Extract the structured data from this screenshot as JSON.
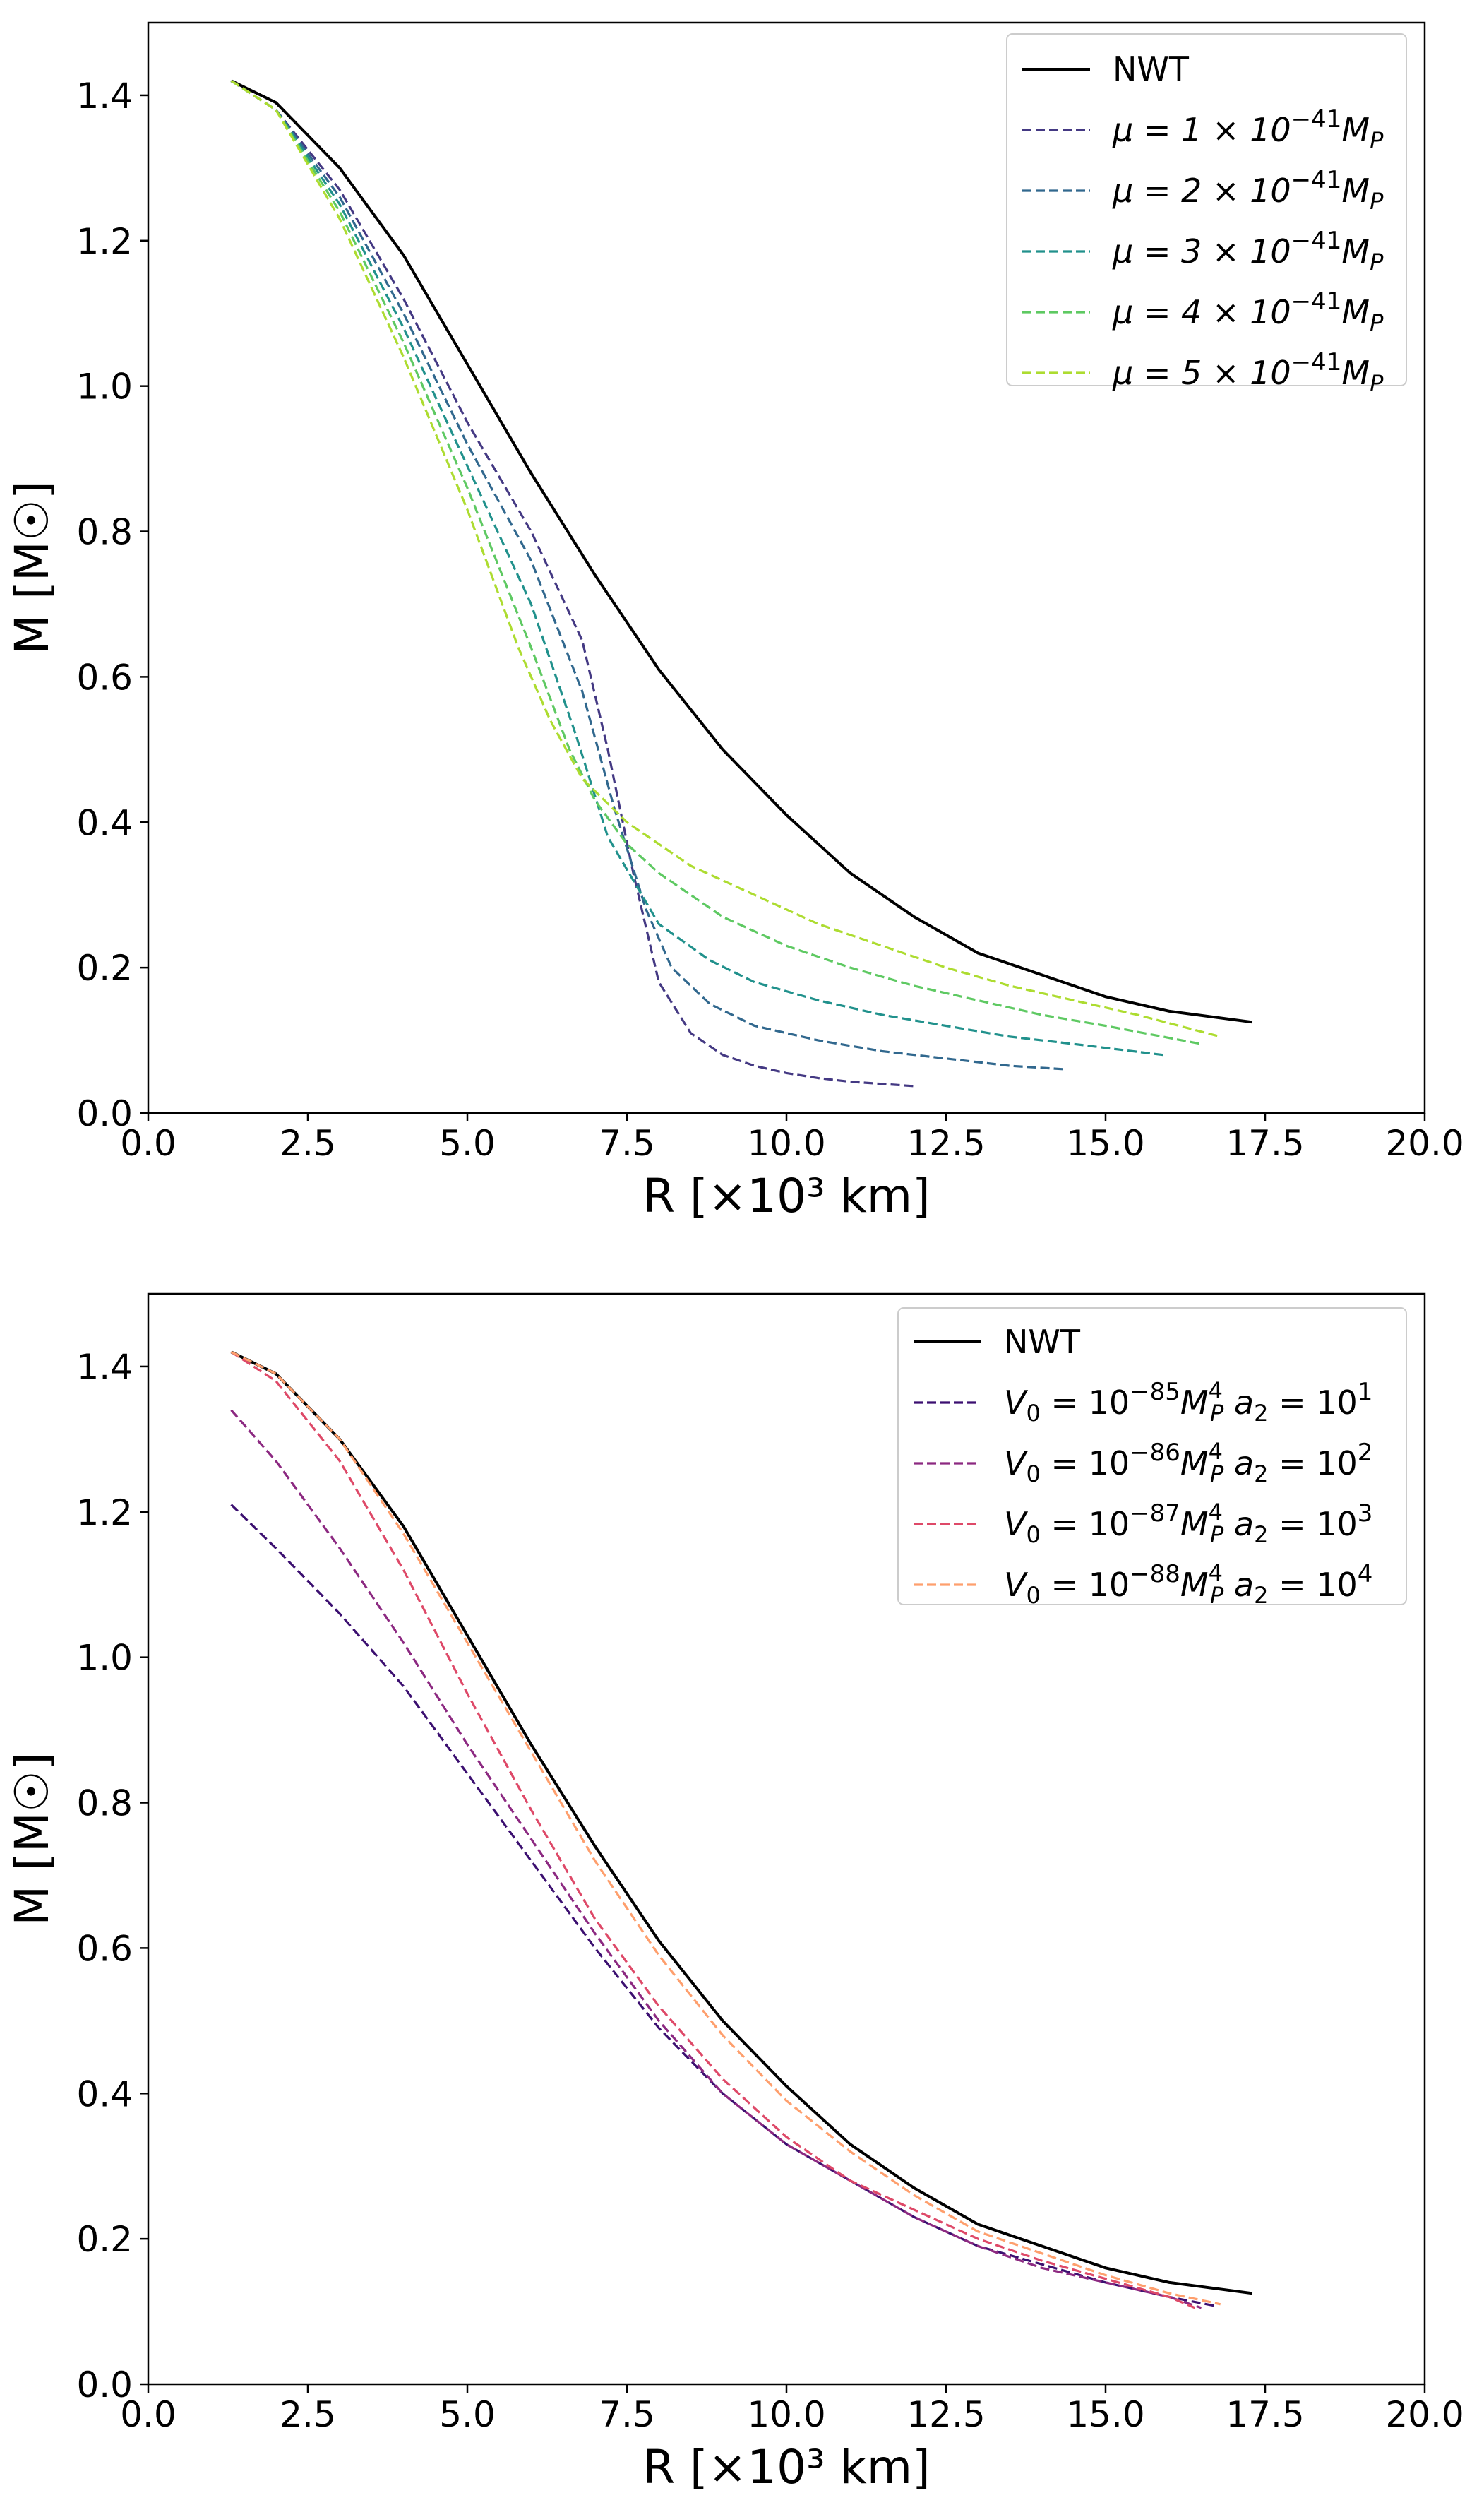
{
  "chart_data": [
    {
      "type": "line",
      "title": "",
      "xlabel": "R [×10³ km]",
      "ylabel": "M [M☉]",
      "xlim": [
        0.0,
        20.0
      ],
      "ylim": [
        0.0,
        1.5
      ],
      "xticks": [
        "0.0",
        "2.5",
        "5.0",
        "7.5",
        "10.0",
        "12.5",
        "15.0",
        "17.5",
        "20.0"
      ],
      "yticks": [
        "0.0",
        "0.2",
        "0.4",
        "0.6",
        "0.8",
        "1.0",
        "1.2",
        "1.4"
      ],
      "grid": false,
      "legend_position": "top-right",
      "series": [
        {
          "name": "NWT",
          "legend_parts": [
            "NWT"
          ],
          "color": "#000000",
          "style": "solid",
          "x": [
            1.3,
            2.0,
            3.0,
            4.0,
            5.0,
            6.0,
            7.0,
            8.0,
            9.0,
            10.0,
            11.0,
            12.0,
            13.0,
            14.0,
            15.0,
            16.0,
            17.3
          ],
          "y": [
            1.42,
            1.39,
            1.3,
            1.18,
            1.03,
            0.88,
            0.74,
            0.61,
            0.5,
            0.41,
            0.33,
            0.27,
            0.22,
            0.19,
            0.16,
            0.14,
            0.125
          ]
        },
        {
          "name": "μ = 1 × 10⁻⁴¹ M_P",
          "legend_parts": [
            "μ = 1 × 10",
            "−41",
            "M",
            "P"
          ],
          "color": "#443983",
          "style": "dashed",
          "x": [
            1.3,
            2.0,
            3.0,
            4.0,
            5.0,
            6.0,
            6.8,
            7.2,
            7.6,
            8.0,
            8.5,
            9.0,
            9.5,
            10.0,
            10.5,
            11.0,
            12.0
          ],
          "y": [
            1.42,
            1.38,
            1.27,
            1.12,
            0.95,
            0.8,
            0.65,
            0.5,
            0.33,
            0.18,
            0.11,
            0.08,
            0.065,
            0.055,
            0.048,
            0.043,
            0.037
          ]
        },
        {
          "name": "μ = 2 × 10⁻⁴¹ M_P",
          "legend_parts": [
            "μ = 2 × 10",
            "−41",
            "M",
            "P"
          ],
          "color": "#31688e",
          "style": "dashed",
          "x": [
            1.3,
            2.0,
            3.0,
            4.0,
            5.0,
            6.0,
            6.8,
            7.3,
            7.8,
            8.2,
            8.8,
            9.5,
            10.5,
            11.5,
            12.5,
            13.5,
            14.4
          ],
          "y": [
            1.42,
            1.38,
            1.26,
            1.1,
            0.92,
            0.76,
            0.58,
            0.42,
            0.28,
            0.2,
            0.15,
            0.12,
            0.1,
            0.085,
            0.075,
            0.065,
            0.06
          ]
        },
        {
          "name": "μ = 3 × 10⁻⁴¹ M_P",
          "legend_parts": [
            "μ = 3 × 10",
            "−41",
            "M",
            "P"
          ],
          "color": "#21918c",
          "style": "dashed",
          "x": [
            1.3,
            2.0,
            3.0,
            4.0,
            5.0,
            6.0,
            6.7,
            7.2,
            7.6,
            8.0,
            8.8,
            9.5,
            10.5,
            11.5,
            12.5,
            13.5,
            14.5,
            15.9
          ],
          "y": [
            1.42,
            1.38,
            1.25,
            1.08,
            0.89,
            0.7,
            0.52,
            0.38,
            0.32,
            0.26,
            0.21,
            0.18,
            0.155,
            0.135,
            0.12,
            0.105,
            0.095,
            0.08
          ]
        },
        {
          "name": "μ = 4 × 10⁻⁴¹ M_P",
          "legend_parts": [
            "μ = 4 × 10",
            "−41",
            "M",
            "P"
          ],
          "color": "#5ec962",
          "style": "dashed",
          "x": [
            1.3,
            2.0,
            3.0,
            4.0,
            5.0,
            6.0,
            6.6,
            7.0,
            7.5,
            8.0,
            9.0,
            10.0,
            11.0,
            12.0,
            13.0,
            14.0,
            15.0,
            16.5
          ],
          "y": [
            1.42,
            1.38,
            1.24,
            1.06,
            0.86,
            0.64,
            0.5,
            0.43,
            0.37,
            0.33,
            0.27,
            0.23,
            0.2,
            0.175,
            0.155,
            0.135,
            0.12,
            0.095
          ]
        },
        {
          "name": "μ = 5 × 10⁻⁴¹ M_P",
          "legend_parts": [
            "μ = 5 × 10",
            "−41",
            "M",
            "P"
          ],
          "color": "#addc30",
          "style": "dashed",
          "x": [
            1.3,
            2.0,
            3.0,
            4.0,
            5.0,
            5.8,
            6.3,
            6.8,
            7.5,
            8.5,
            9.5,
            10.5,
            11.5,
            12.5,
            13.5,
            14.5,
            15.5,
            16.8
          ],
          "y": [
            1.42,
            1.38,
            1.23,
            1.04,
            0.83,
            0.64,
            0.54,
            0.46,
            0.4,
            0.34,
            0.3,
            0.26,
            0.23,
            0.2,
            0.175,
            0.155,
            0.135,
            0.105
          ]
        }
      ]
    },
    {
      "type": "line",
      "title": "",
      "xlabel": "R [×10³ km]",
      "ylabel": "M [M☉]",
      "xlim": [
        0.0,
        20.0
      ],
      "ylim": [
        0.0,
        1.5
      ],
      "xticks": [
        "0.0",
        "2.5",
        "5.0",
        "7.5",
        "10.0",
        "12.5",
        "15.0",
        "17.5",
        "20.0"
      ],
      "yticks": [
        "0.0",
        "0.2",
        "0.4",
        "0.6",
        "0.8",
        "1.0",
        "1.2",
        "1.4"
      ],
      "grid": false,
      "legend_position": "top-right",
      "series": [
        {
          "name": "NWT",
          "legend_parts": [
            "NWT"
          ],
          "color": "#000000",
          "style": "solid",
          "x": [
            1.3,
            2.0,
            3.0,
            4.0,
            5.0,
            6.0,
            7.0,
            8.0,
            9.0,
            10.0,
            11.0,
            12.0,
            13.0,
            14.0,
            15.0,
            16.0,
            17.3
          ],
          "y": [
            1.42,
            1.39,
            1.3,
            1.18,
            1.03,
            0.88,
            0.74,
            0.61,
            0.5,
            0.41,
            0.33,
            0.27,
            0.22,
            0.19,
            0.16,
            0.14,
            0.125
          ]
        },
        {
          "name": "V₀ = 10⁻⁸⁵ M_P⁴ a₂ = 10¹",
          "legend_parts": [
            "V",
            "0",
            " = 10",
            "−85",
            "M",
            "4",
            "P",
            " a",
            "2",
            " = 10",
            "1"
          ],
          "color": "#3b0f70",
          "style": "dashed",
          "x": [
            1.3,
            2.0,
            3.0,
            4.0,
            5.0,
            6.0,
            7.0,
            8.0,
            9.0,
            10.0,
            11.0,
            12.0,
            13.0,
            14.0,
            15.0,
            16.0,
            16.7
          ],
          "y": [
            1.21,
            1.15,
            1.06,
            0.96,
            0.84,
            0.72,
            0.6,
            0.49,
            0.4,
            0.33,
            0.28,
            0.23,
            0.19,
            0.165,
            0.14,
            0.12,
            0.108
          ]
        },
        {
          "name": "V₀ = 10⁻⁸⁶ M_P⁴ a₂ = 10²",
          "legend_parts": [
            "V",
            "0",
            " = 10",
            "−86",
            "M",
            "4",
            "P",
            " a",
            "2",
            " = 10",
            "2"
          ],
          "color": "#8c2981",
          "style": "dashed",
          "x": [
            1.3,
            2.0,
            3.0,
            4.0,
            5.0,
            6.0,
            7.0,
            8.0,
            9.0,
            10.0,
            11.0,
            12.0,
            13.0,
            14.0,
            15.0,
            16.0,
            16.5
          ],
          "y": [
            1.34,
            1.27,
            1.15,
            1.02,
            0.88,
            0.75,
            0.62,
            0.5,
            0.4,
            0.33,
            0.28,
            0.23,
            0.19,
            0.16,
            0.14,
            0.12,
            0.105
          ]
        },
        {
          "name": "V₀ = 10⁻⁸⁷ M_P⁴ a₂ = 10³",
          "legend_parts": [
            "V",
            "0",
            " = 10",
            "−87",
            "M",
            "4",
            "P",
            " a",
            "2",
            " = 10",
            "3"
          ],
          "color": "#de4968",
          "style": "dashed",
          "x": [
            1.3,
            2.0,
            3.0,
            4.0,
            5.0,
            6.0,
            7.0,
            8.0,
            9.0,
            10.0,
            11.0,
            12.0,
            13.0,
            14.0,
            15.0,
            16.0,
            16.4
          ],
          "y": [
            1.42,
            1.38,
            1.27,
            1.12,
            0.95,
            0.79,
            0.64,
            0.52,
            0.42,
            0.34,
            0.28,
            0.24,
            0.2,
            0.17,
            0.145,
            0.12,
            0.105
          ]
        },
        {
          "name": "V₀ = 10⁻⁸⁸ M_P⁴ a₂ = 10⁴",
          "legend_parts": [
            "V",
            "0",
            " = 10",
            "−88",
            "M",
            "4",
            "P",
            " a",
            "2",
            " = 10",
            "4"
          ],
          "color": "#fe9f6d",
          "style": "dashed",
          "x": [
            1.3,
            2.0,
            3.0,
            4.0,
            5.0,
            6.0,
            7.0,
            8.0,
            9.0,
            10.0,
            11.0,
            12.0,
            13.0,
            14.0,
            15.0,
            16.0,
            16.8
          ],
          "y": [
            1.42,
            1.39,
            1.3,
            1.17,
            1.02,
            0.87,
            0.72,
            0.59,
            0.48,
            0.39,
            0.32,
            0.26,
            0.21,
            0.18,
            0.15,
            0.125,
            0.11
          ]
        }
      ]
    }
  ]
}
